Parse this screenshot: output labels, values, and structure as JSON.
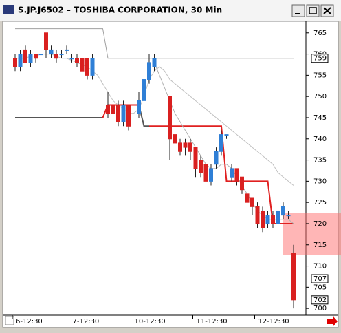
{
  "window_title": "S.JP.J6502 – TOSHIBA CORPORATION, 30 Min",
  "chart_data": {
    "type": "candlestick",
    "categories": [
      "6-12:30",
      null,
      null,
      null,
      null,
      null,
      null,
      null,
      null,
      null,
      null,
      "7-12:30",
      null,
      null,
      null,
      null,
      null,
      null,
      null,
      null,
      null,
      null,
      null,
      "10-12:30",
      null,
      null,
      null,
      null,
      null,
      null,
      null,
      null,
      null,
      null,
      null,
      "11-12:30",
      null,
      null,
      null,
      null,
      null,
      null,
      null,
      null,
      null,
      null,
      null,
      "12-12:30",
      null,
      null,
      null,
      null,
      null,
      null,
      null
    ],
    "open": [
      759,
      757,
      761,
      758,
      760,
      760,
      765,
      760,
      760,
      760,
      761,
      759,
      759,
      759,
      759,
      755,
      null,
      null,
      748,
      748,
      748,
      744,
      748,
      null,
      746,
      749,
      754,
      757,
      null,
      null,
      750,
      741,
      739,
      739,
      739,
      738,
      735,
      734,
      730,
      734,
      737,
      741,
      731,
      733,
      731,
      727,
      726,
      724,
      723,
      720,
      722,
      720,
      722,
      722,
      713
    ],
    "high": [
      760,
      761,
      762,
      761,
      760,
      761,
      765,
      762,
      761,
      761,
      762,
      760,
      760,
      759,
      759,
      760,
      null,
      null,
      751,
      748,
      749,
      749,
      748,
      null,
      751,
      756,
      760,
      760,
      null,
      null,
      750,
      742,
      740,
      740,
      740,
      738,
      736,
      735,
      734,
      738,
      742,
      741,
      734,
      733,
      731,
      728,
      726,
      725,
      724,
      723,
      723,
      725,
      725,
      723,
      715
    ],
    "low": [
      756,
      756,
      758,
      757,
      758,
      759,
      759,
      759,
      758,
      759,
      760,
      758,
      757,
      755,
      754,
      754,
      null,
      null,
      745,
      745,
      743,
      743,
      742,
      null,
      745,
      748,
      753,
      756,
      null,
      null,
      735,
      738,
      736,
      736,
      735,
      731,
      731,
      729,
      729,
      733,
      736,
      740,
      730,
      729,
      727,
      724,
      722,
      719,
      718,
      719,
      719,
      719,
      721,
      721,
      700
    ],
    "close": [
      757,
      760,
      758,
      760,
      759,
      760,
      761,
      761,
      759,
      760,
      761,
      759,
      758,
      756,
      755,
      759,
      null,
      null,
      746,
      746,
      744,
      748,
      743,
      null,
      749,
      754,
      758,
      759,
      null,
      null,
      740,
      739,
      737,
      738,
      737,
      733,
      732,
      730,
      733,
      737,
      741,
      741,
      733,
      730,
      728,
      725,
      724,
      720,
      719,
      722,
      720,
      723,
      724,
      722,
      702
    ],
    "up_color": "#2f7fd6",
    "down_color": "#d92020",
    "overlays": [
      {
        "color": "#a0a0a0",
        "values": [
          766,
          766,
          766,
          766,
          766,
          766,
          766,
          766,
          766,
          766,
          766,
          766,
          766,
          766,
          766,
          766,
          766,
          766,
          759,
          759,
          759,
          759,
          759,
          759,
          759,
          759,
          759,
          759,
          759,
          759,
          759,
          759,
          759,
          759,
          759,
          759,
          759,
          759,
          759,
          759,
          759,
          759,
          759,
          759,
          759,
          759,
          759,
          759,
          759,
          759,
          759,
          759,
          759,
          759,
          759
        ]
      },
      {
        "color": "#555555",
        "values": [
          745,
          745,
          745,
          745,
          745,
          745,
          745,
          745,
          745,
          745,
          745,
          745,
          745,
          745,
          745,
          745,
          745,
          745,
          null,
          null,
          null,
          null,
          null,
          null,
          748,
          743,
          743,
          null,
          null,
          null,
          null,
          null,
          null,
          null,
          null,
          null,
          null,
          null,
          null,
          null,
          null,
          null,
          null,
          null,
          null,
          null,
          null,
          null,
          null,
          null,
          null,
          null,
          null,
          null,
          null
        ]
      },
      {
        "color": "#e02020",
        "values": [
          null,
          null,
          null,
          null,
          null,
          null,
          null,
          null,
          null,
          null,
          null,
          null,
          null,
          null,
          null,
          null,
          null,
          745,
          748,
          748,
          748,
          748,
          748,
          748,
          748,
          null,
          743,
          743,
          743,
          743,
          743,
          743,
          743,
          743,
          743,
          743,
          743,
          743,
          743,
          743,
          743,
          730,
          730,
          730,
          730,
          730,
          730,
          730,
          730,
          730,
          720,
          720,
          720,
          720,
          720
        ]
      },
      {
        "color": "#c0c0c0",
        "values": [
          759,
          759,
          759,
          759.5,
          759.5,
          760,
          760,
          760,
          759.5,
          759,
          759,
          758.5,
          758,
          757.5,
          757,
          756,
          755,
          753,
          751,
          749,
          748,
          747,
          746,
          746,
          747,
          750,
          754,
          756,
          757,
          756,
          754,
          753,
          752,
          751,
          750,
          749,
          748,
          747,
          746,
          745,
          744,
          743,
          742,
          741,
          740,
          739,
          738,
          737,
          736,
          735,
          734,
          732,
          731,
          730,
          729
        ]
      },
      {
        "color": "#b0b0b0",
        "values": [
          null,
          null,
          null,
          null,
          null,
          null,
          null,
          null,
          null,
          null,
          null,
          null,
          null,
          null,
          null,
          null,
          null,
          null,
          null,
          null,
          null,
          null,
          null,
          null,
          null,
          null,
          null,
          758,
          755,
          752,
          749,
          746,
          744,
          742,
          740,
          738,
          736,
          734,
          733,
          733,
          734,
          734,
          733,
          731,
          729,
          727,
          725,
          723,
          722,
          721,
          721,
          721,
          721,
          721,
          720
        ]
      }
    ],
    "ylim": [
      698.4,
      767.4
    ],
    "yticks": [
      700,
      705,
      710,
      715,
      720,
      725,
      730,
      735,
      740,
      745,
      750,
      755,
      760,
      765
    ],
    "markers": [
      759,
      707,
      702
    ]
  }
}
